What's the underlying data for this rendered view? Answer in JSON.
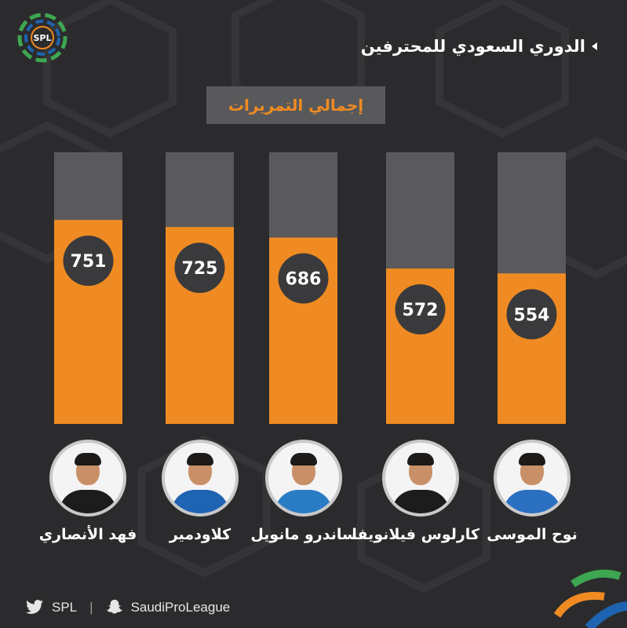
{
  "header": {
    "logo_text": "SPL",
    "league_title": "الدوري السعودي للمحترفين",
    "metric_title": "إجمالي التمريرات"
  },
  "chart_data": {
    "type": "bar",
    "categories": [
      "فهد الأنصاري",
      "كلاودمير",
      "ساندرو مانويل",
      "كارلوس فيلانويفا",
      "نوح الموسى"
    ],
    "values": [
      751,
      725,
      686,
      572,
      554
    ],
    "title": "إجمالي التمريرات",
    "xlabel": "",
    "ylabel": "",
    "ylim": [
      0,
      1000
    ],
    "grid": false,
    "bar_color": "#ef8b22",
    "track_color": "#5a5a5c",
    "label_badge_color": "#3a3a3c"
  },
  "players": [
    {
      "name": "فهد الأنصاري",
      "shirt_color": "#1c1c1c"
    },
    {
      "name": "كلاودمير",
      "shirt_color": "#1f63b3"
    },
    {
      "name": "ساندرو مانويل",
      "shirt_color": "#2a7cc4"
    },
    {
      "name": "كارلوس فيلانويفا",
      "shirt_color": "#1c1c1c"
    },
    {
      "name": "نوح الموسى",
      "shirt_color": "#2b6fc0"
    }
  ],
  "footer": {
    "twitter_handle": "SPL",
    "separator": "|",
    "snapchat_handle": "SaudiProLeague"
  },
  "colors": {
    "background": "#2b2b2d",
    "accent": "#ef8b22",
    "brand_green": "#3ea651",
    "brand_blue": "#1e64b0"
  }
}
